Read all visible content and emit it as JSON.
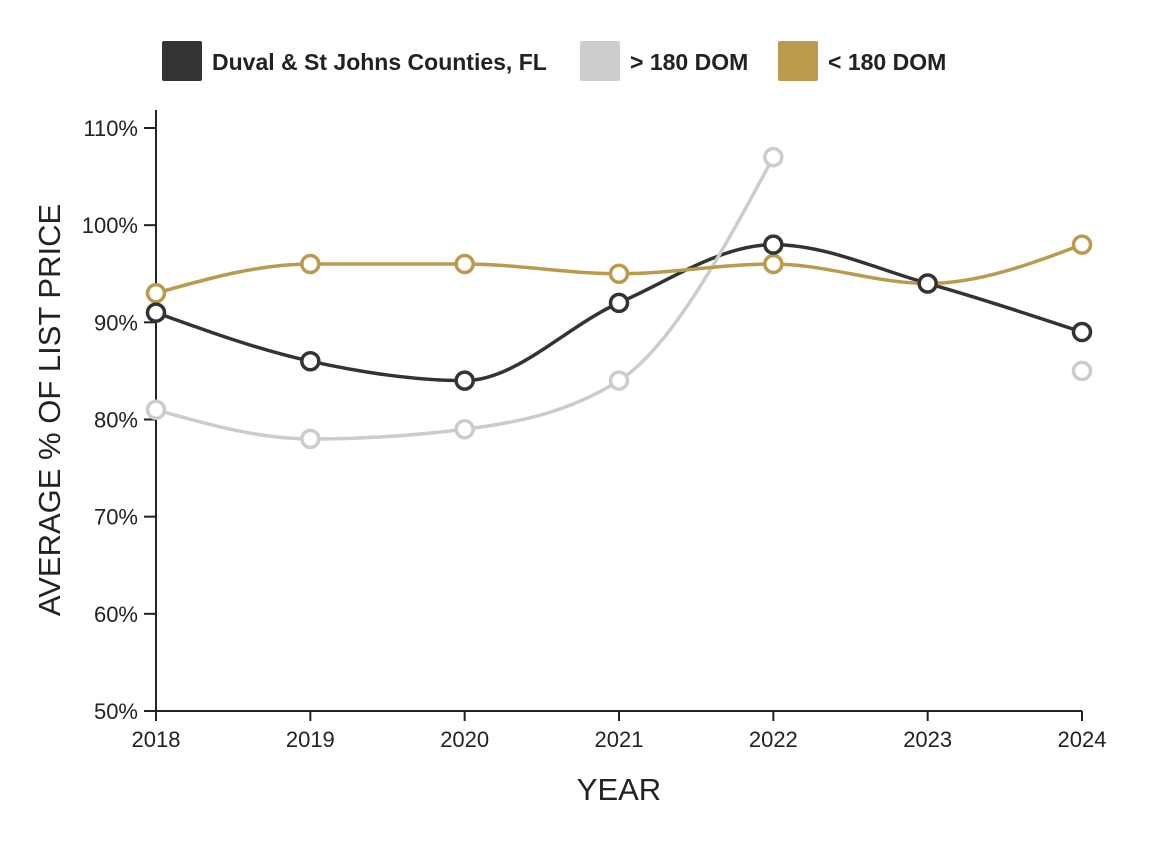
{
  "chart_data": {
    "type": "line",
    "title": "",
    "xlabel": "YEAR",
    "ylabel": "AVERAGE % OF LIST PRICE",
    "x": [
      "2018",
      "2019",
      "2020",
      "2021",
      "2022",
      "2023",
      "2024"
    ],
    "ylim": [
      50,
      110
    ],
    "yticks": [
      50,
      60,
      70,
      80,
      90,
      100,
      110
    ],
    "ytick_labels": [
      "50%",
      "60%",
      "70%",
      "80%",
      "90%",
      "100%",
      "110%"
    ],
    "legend_position": "top",
    "series": [
      {
        "name": "Duval & St Johns Counties, FL",
        "color": "#333333",
        "values": [
          91,
          86,
          84,
          92,
          98,
          94,
          89
        ]
      },
      {
        "name": "> 180 DOM",
        "color": "#cccccc",
        "values": [
          81,
          78,
          79,
          84,
          107,
          null,
          85
        ]
      },
      {
        "name": "< 180 DOM",
        "color": "#bb9a4d",
        "values": [
          93,
          96,
          96,
          95,
          96,
          94,
          98
        ]
      }
    ]
  }
}
